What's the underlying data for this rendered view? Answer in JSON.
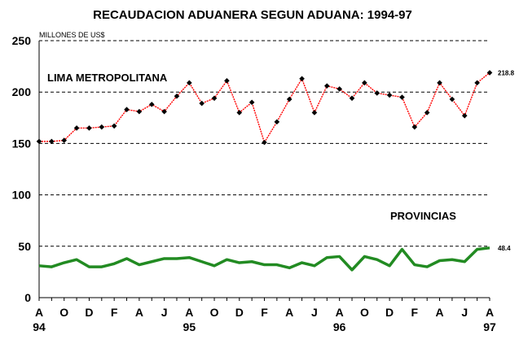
{
  "chart_data": {
    "type": "line",
    "title": "RECAUDACION ADUANERA SEGUN ADUANA: 1994-97",
    "ylabel": "MILLONES DE US$",
    "xlabel": "",
    "ylim": [
      0,
      250
    ],
    "yticks": [
      0,
      50,
      100,
      150,
      200,
      250
    ],
    "grid": "dashed horizontal",
    "month_labels": [
      "A",
      "O",
      "D",
      "F",
      "A",
      "J",
      "A",
      "O",
      "D",
      "F",
      "A",
      "J",
      "A",
      "O",
      "D",
      "F",
      "A",
      "J",
      "A"
    ],
    "year_labels": [
      {
        "label": "94",
        "month_index": 0
      },
      {
        "label": "95",
        "month_index": 12
      },
      {
        "label": "96",
        "month_index": 24
      },
      {
        "label": "97",
        "month_index": 36
      }
    ],
    "x": [
      0,
      1,
      2,
      3,
      4,
      5,
      6,
      7,
      8,
      9,
      10,
      11,
      12,
      13,
      14,
      15,
      16,
      17,
      18,
      19,
      20,
      21,
      22,
      23,
      24,
      25,
      26,
      27,
      28,
      29,
      30,
      31,
      32,
      33,
      34,
      35,
      36
    ],
    "series": [
      {
        "name": "LIMA METROPOLITANA",
        "color": "#ff0000",
        "marker_color": "#000000",
        "values": [
          152,
          152,
          153,
          165,
          165,
          166,
          167,
          183,
          181,
          188,
          181,
          196,
          209,
          189,
          194,
          211,
          180,
          190,
          151,
          171,
          193,
          213,
          180,
          206,
          203,
          194,
          209,
          199,
          197,
          195,
          166,
          180,
          209,
          193,
          177,
          209,
          218.8
        ],
        "end_label": "218.8"
      },
      {
        "name": "PROVINCIAS",
        "color": "#228b22",
        "values": [
          31,
          30,
          34,
          37,
          30,
          30,
          33,
          38,
          32,
          35,
          38,
          38,
          39,
          35,
          31,
          37,
          34,
          35,
          32,
          32,
          29,
          34,
          31,
          39,
          40,
          27,
          40,
          37,
          31,
          47,
          32,
          30,
          36,
          37,
          35,
          47,
          48.4
        ],
        "end_label": "48.4"
      }
    ]
  }
}
